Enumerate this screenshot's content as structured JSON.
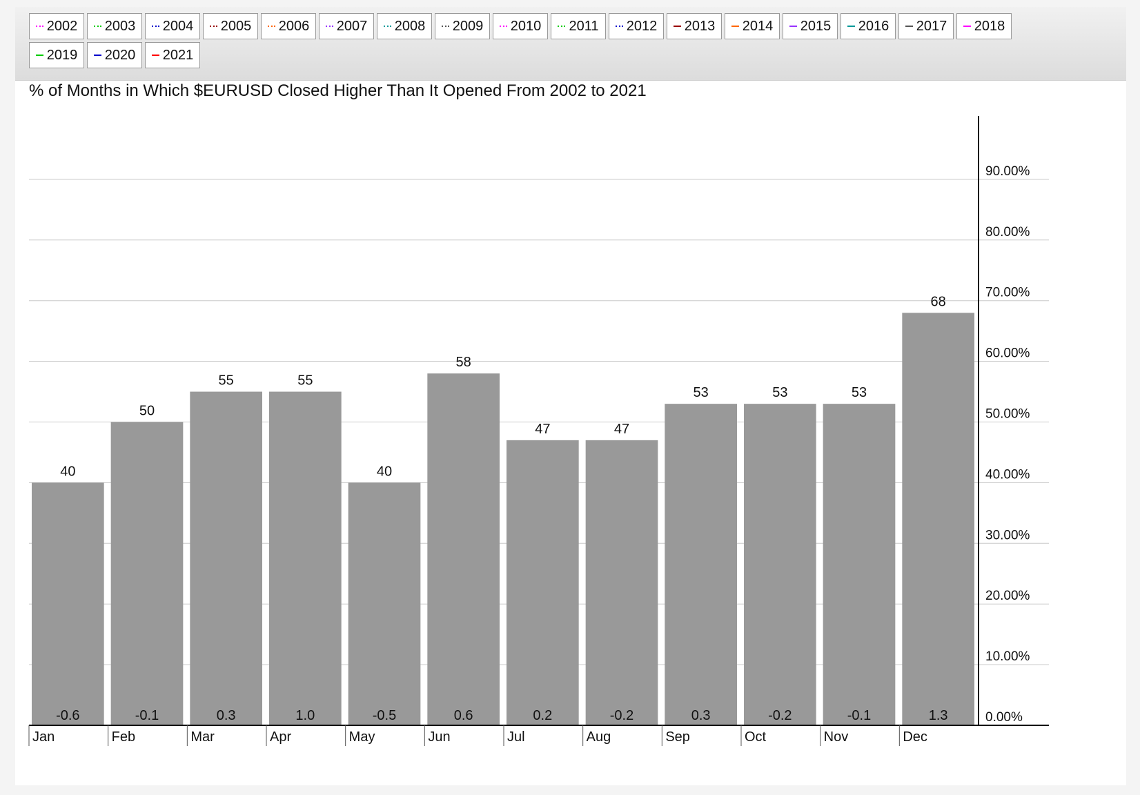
{
  "chart_data": {
    "type": "bar",
    "title": "% of Months in Which $EURUSD Closed Higher Than It Opened From 2002 to 2021",
    "categories": [
      "Jan",
      "Feb",
      "Mar",
      "Apr",
      "May",
      "Jun",
      "Jul",
      "Aug",
      "Sep",
      "Oct",
      "Nov",
      "Dec"
    ],
    "values": [
      40,
      50,
      55,
      55,
      40,
      58,
      47,
      47,
      53,
      53,
      53,
      68
    ],
    "bar_labels": [
      "40",
      "50",
      "55",
      "55",
      "40",
      "58",
      "47",
      "47",
      "53",
      "53",
      "53",
      "68"
    ],
    "secondary_labels": [
      "-0.6",
      "-0.1",
      "0.3",
      "1.0",
      "-0.5",
      "0.6",
      "0.2",
      "-0.2",
      "0.3",
      "-0.2",
      "-0.1",
      "1.3"
    ],
    "ylim": [
      0,
      100
    ],
    "yticks": [
      0,
      10,
      20,
      30,
      40,
      50,
      60,
      70,
      80,
      90
    ],
    "ytick_labels": [
      "0.00%",
      "10.00%",
      "20.00%",
      "30.00%",
      "40.00%",
      "50.00%",
      "60.00%",
      "70.00%",
      "80.00%",
      "90.00%"
    ],
    "y_axis_side": "right",
    "grid": true,
    "bar_color": "#999999",
    "legend_position": "top"
  },
  "legend": [
    {
      "label": "2002",
      "color": "#ff00ff",
      "style": "dotted"
    },
    {
      "label": "2003",
      "color": "#00cc00",
      "style": "dotted"
    },
    {
      "label": "2004",
      "color": "#0000cc",
      "style": "dotted"
    },
    {
      "label": "2005",
      "color": "#990000",
      "style": "dotted"
    },
    {
      "label": "2006",
      "color": "#ff6600",
      "style": "dotted"
    },
    {
      "label": "2007",
      "color": "#9933ff",
      "style": "dotted"
    },
    {
      "label": "2008",
      "color": "#009999",
      "style": "dotted"
    },
    {
      "label": "2009",
      "color": "#555555",
      "style": "dotted"
    },
    {
      "label": "2010",
      "color": "#ff00ff",
      "style": "dotted"
    },
    {
      "label": "2011",
      "color": "#00cc00",
      "style": "dotted"
    },
    {
      "label": "2012",
      "color": "#0000cc",
      "style": "dotted"
    },
    {
      "label": "2013",
      "color": "#990000",
      "style": "solid"
    },
    {
      "label": "2014",
      "color": "#ff6600",
      "style": "solid"
    },
    {
      "label": "2015",
      "color": "#9933ff",
      "style": "solid"
    },
    {
      "label": "2016",
      "color": "#009999",
      "style": "solid"
    },
    {
      "label": "2017",
      "color": "#555555",
      "style": "solid"
    },
    {
      "label": "2018",
      "color": "#ff00ff",
      "style": "solid"
    },
    {
      "label": "2019",
      "color": "#00cc00",
      "style": "solid"
    },
    {
      "label": "2020",
      "color": "#0000cc",
      "style": "solid"
    },
    {
      "label": "2021",
      "color": "#ff0000",
      "style": "solid"
    }
  ]
}
